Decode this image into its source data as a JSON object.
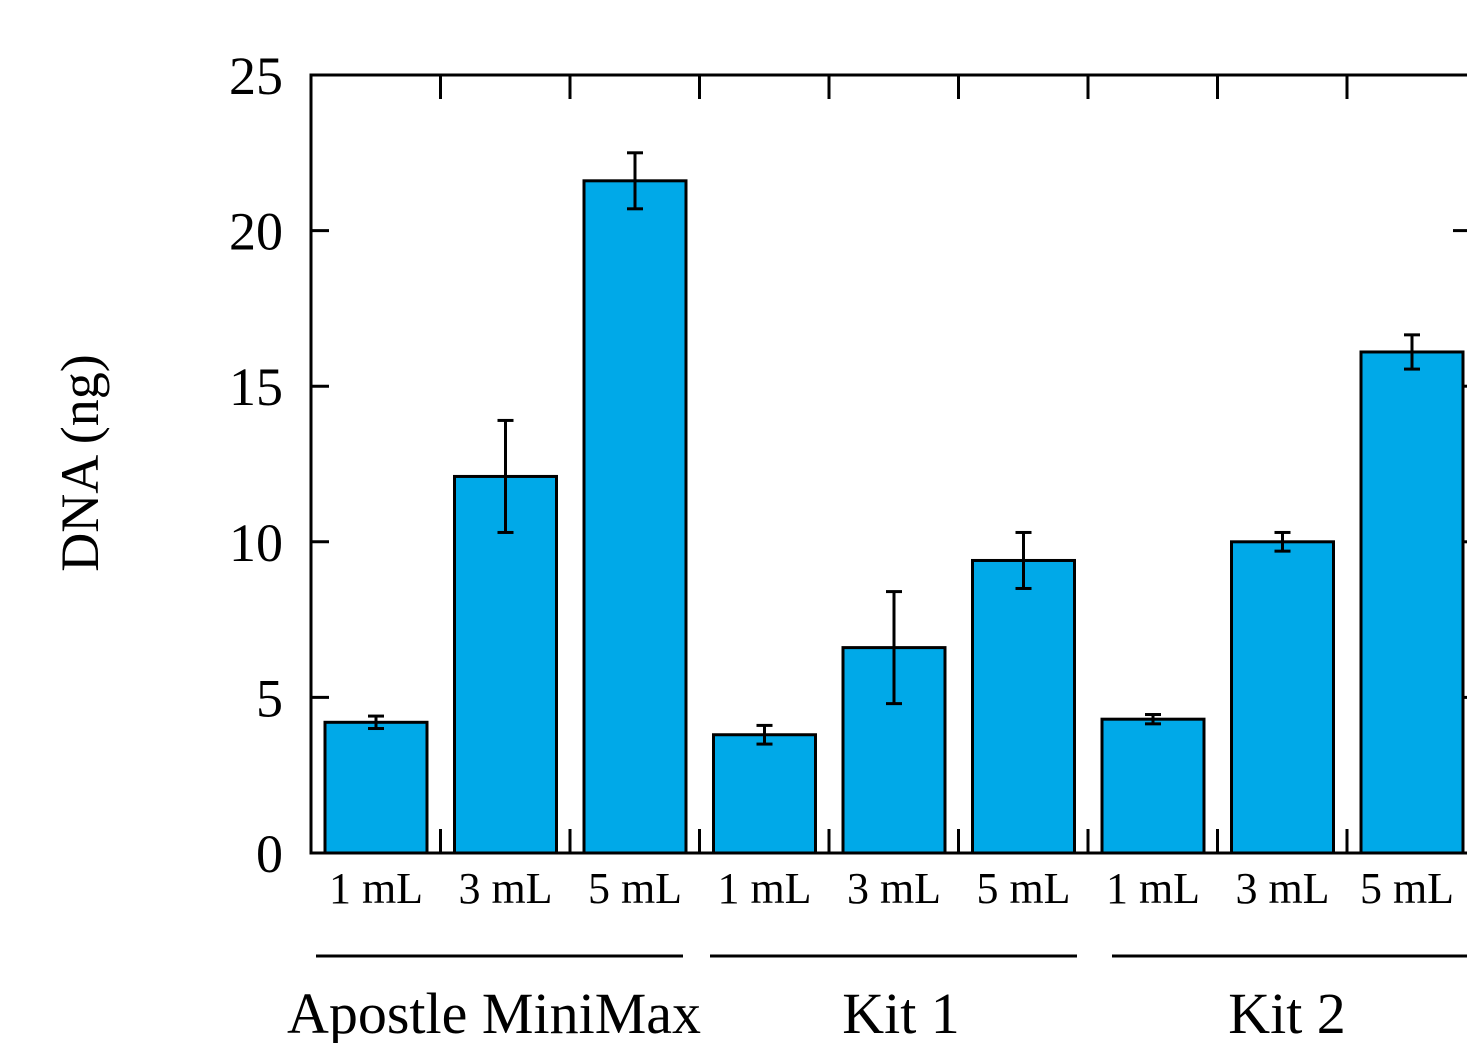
{
  "chart_data": {
    "type": "bar",
    "title": "",
    "xlabel": "",
    "ylabel": "DNA (ng)",
    "ylim": [
      0,
      25
    ],
    "yticks": [
      0,
      5,
      10,
      15,
      20,
      25
    ],
    "ytick_labels": [
      "0",
      "5",
      "10",
      "15",
      "20",
      "25"
    ],
    "grid": false,
    "legend": "none",
    "bar_color": "#00A9E8",
    "categories": [
      "1 mL",
      "3 mL",
      "5 mL",
      "1 mL",
      "3 mL",
      "5 mL",
      "1 mL",
      "3 mL",
      "5 mL"
    ],
    "values": [
      4.2,
      12.1,
      21.6,
      3.8,
      6.6,
      9.4,
      4.3,
      10.0,
      16.1
    ],
    "errors": [
      0.2,
      1.8,
      0.9,
      0.3,
      1.8,
      0.9,
      0.15,
      0.3,
      0.55
    ],
    "groups": [
      {
        "label": "Apostle MiniMax",
        "start": 0,
        "end": 2
      },
      {
        "label": "Kit 1",
        "start": 3,
        "end": 5
      },
      {
        "label": "Kit 2",
        "start": 6,
        "end": 8
      }
    ]
  }
}
